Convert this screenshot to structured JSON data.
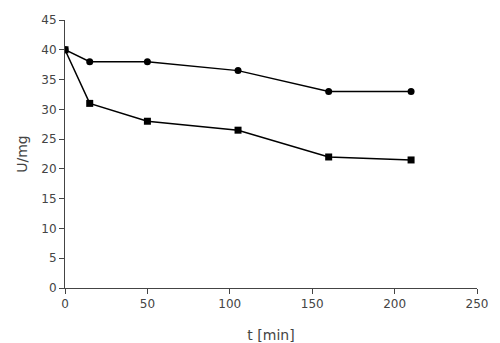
{
  "chart_data": {
    "type": "line",
    "x": [
      0,
      15,
      50,
      105,
      160,
      210
    ],
    "series": [
      {
        "color": "#000000",
        "marker": "circle",
        "line_style": "solid",
        "values": [
          40,
          38,
          38,
          36.5,
          33,
          33
        ]
      },
      {
        "color": "#000000",
        "marker": "square",
        "line_style": "solid",
        "values": [
          40,
          31,
          28,
          26.5,
          22,
          21.5
        ]
      }
    ],
    "xlabel": "t [min]",
    "ylabel": "U/mg",
    "xlim": [
      0,
      250
    ],
    "ylim": [
      0,
      45
    ],
    "xticks": [
      0,
      50,
      100,
      150,
      200,
      250
    ],
    "yticks": [
      0,
      5,
      10,
      15,
      20,
      25,
      30,
      35,
      40,
      45
    ],
    "grid": false
  }
}
